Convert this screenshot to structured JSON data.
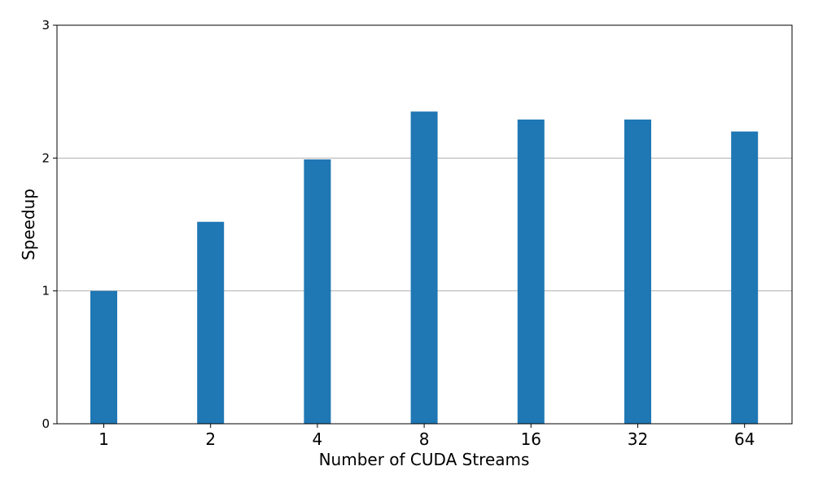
{
  "chart_data": {
    "type": "bar",
    "title": "",
    "xlabel": "Number of CUDA Streams",
    "ylabel": "Speedup",
    "categories": [
      "1",
      "2",
      "4",
      "8",
      "16",
      "32",
      "64"
    ],
    "values": [
      1.0,
      1.52,
      1.99,
      2.35,
      2.29,
      2.29,
      2.2
    ],
    "ylim": [
      0,
      3
    ],
    "yticks": [
      0,
      1,
      2,
      3
    ],
    "grid": "y-axis",
    "bar_color": "#1f77b4",
    "grid_color": "#b0b0b0",
    "legend": "none"
  }
}
